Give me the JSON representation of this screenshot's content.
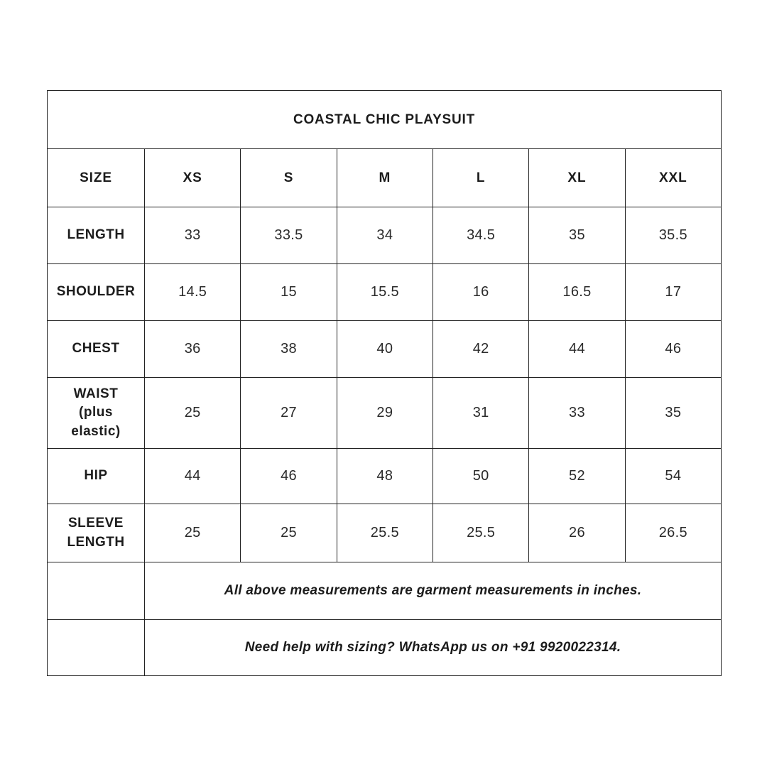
{
  "page": {
    "background": "#ffffff",
    "text_color": "#1c1c1c",
    "border_color": "#222222"
  },
  "table": {
    "title": "COASTAL CHIC PLAYSUIT",
    "header": {
      "label": "SIZE",
      "sizes": [
        "XS",
        "S",
        "M",
        "L",
        "XL",
        "XXL"
      ]
    },
    "rows": [
      {
        "label": "LENGTH",
        "values": [
          "33",
          "33.5",
          "34",
          "34.5",
          "35",
          "35.5"
        ]
      },
      {
        "label": "SHOULDER",
        "values": [
          "14.5",
          "15",
          "15.5",
          "16",
          "16.5",
          "17"
        ]
      },
      {
        "label": "CHEST",
        "values": [
          "36",
          "38",
          "40",
          "42",
          "44",
          "46"
        ]
      },
      {
        "label": "WAIST\n(plus\nelastic)",
        "values": [
          "25",
          "27",
          "29",
          "31",
          "33",
          "35"
        ]
      },
      {
        "label": "HIP",
        "values": [
          "44",
          "46",
          "48",
          "50",
          "52",
          "54"
        ]
      },
      {
        "label": "SLEEVE\nLENGTH",
        "values": [
          "25",
          "25",
          "25.5",
          "25.5",
          "26",
          "26.5"
        ]
      }
    ],
    "notes": [
      "All above measurements are garment measurements in inches.",
      "Need help with sizing? WhatsApp us on +91 9920022314."
    ]
  }
}
